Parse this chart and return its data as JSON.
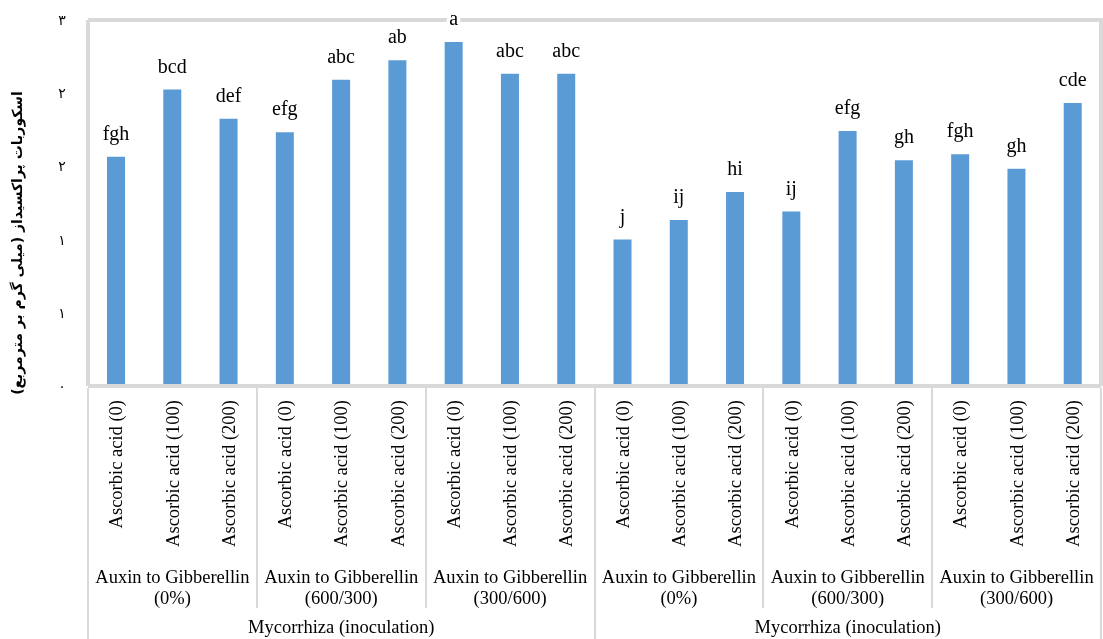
{
  "chart_data": {
    "type": "bar",
    "ylabel": "اسکوربات پراکسیداز (میلی گرم بر مترمربع)",
    "categories": [
      "Ascorbic acid (0)",
      "Ascorbic acid (100)",
      "Ascorbic acid (200)",
      "Ascorbic acid (0)",
      "Ascorbic acid (100)",
      "Ascorbic acid (200)",
      "Ascorbic acid (0)",
      "Ascorbic acid (100)",
      "Ascorbic acid (200)",
      "Ascorbic acid (0)",
      "Ascorbic acid (100)",
      "Ascorbic acid (200)",
      "Ascorbic acid (0)",
      "Ascorbic acid (100)",
      "Ascorbic acid (200)",
      "Ascorbic acid (0)",
      "Ascorbic acid (100)",
      "Ascorbic acid (200)"
    ],
    "values": [
      1.88,
      2.43,
      2.19,
      2.08,
      2.51,
      2.67,
      2.82,
      2.56,
      2.56,
      1.2,
      1.36,
      1.59,
      1.43,
      2.09,
      1.85,
      1.9,
      1.78,
      2.32
    ],
    "color": "#5b9bd5",
    "value_labels": [
      "fgh",
      "bcd",
      "def",
      "efg",
      "abc",
      "ab",
      "a",
      "abc",
      "abc",
      "j",
      "ij",
      "hi",
      "ij",
      "efg",
      "gh",
      "fgh",
      "gh",
      "cde"
    ],
    "ylim": [
      0,
      3
    ],
    "yticks": [
      {
        "value": 0,
        "label": "۰"
      },
      {
        "value": 0.6,
        "label": "۱"
      },
      {
        "value": 1.2,
        "label": "۱"
      },
      {
        "value": 1.8,
        "label": "۲"
      },
      {
        "value": 2.4,
        "label": "۲"
      },
      {
        "value": 3,
        "label": "۳"
      }
    ],
    "annotations": [
      "Auxin to Gibberellin (0%)",
      "Auxin to Gibberellin (600/300)",
      "Auxin to Gibberellin (300/600)",
      "Auxin to Gibberellin (0%)",
      "Auxin to Gibberellin (600/300)",
      "Auxin to Gibberellin (300/600)",
      "Mycorrhiza (inoculation)",
      "Mycorrhiza (inoculation)"
    ]
  }
}
